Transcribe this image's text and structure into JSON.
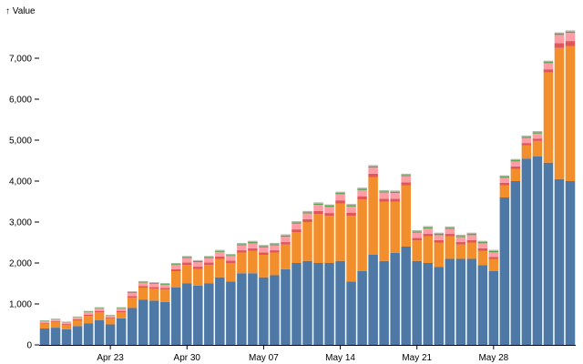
{
  "chart_data": {
    "type": "bar",
    "stacked": true,
    "ylabel": "↑ Value",
    "ylim": [
      0,
      7800
    ],
    "y_ticks": [
      0,
      1000,
      2000,
      3000,
      4000,
      5000,
      6000,
      7000
    ],
    "y_tick_labels": [
      "0",
      "1,000",
      "2,000",
      "3,000",
      "4,000",
      "5,000",
      "6,000",
      "7,000"
    ],
    "x_ticks": [
      {
        "date": "2020-04-23",
        "label": "Apr 23"
      },
      {
        "date": "2020-04-30",
        "label": "Apr 30"
      },
      {
        "date": "2020-05-07",
        "label": "May 07"
      },
      {
        "date": "2020-05-14",
        "label": "May 14"
      },
      {
        "date": "2020-05-21",
        "label": "May 21"
      },
      {
        "date": "2020-05-28",
        "label": "May 28"
      }
    ],
    "categories": [
      "2020-04-17",
      "2020-04-18",
      "2020-04-19",
      "2020-04-20",
      "2020-04-21",
      "2020-04-22",
      "2020-04-23",
      "2020-04-24",
      "2020-04-25",
      "2020-04-26",
      "2020-04-27",
      "2020-04-28",
      "2020-04-29",
      "2020-04-30",
      "2020-05-01",
      "2020-05-02",
      "2020-05-03",
      "2020-05-04",
      "2020-05-05",
      "2020-05-06",
      "2020-05-07",
      "2020-05-08",
      "2020-05-09",
      "2020-05-10",
      "2020-05-11",
      "2020-05-12",
      "2020-05-13",
      "2020-05-14",
      "2020-05-15",
      "2020-05-16",
      "2020-05-17",
      "2020-05-18",
      "2020-05-19",
      "2020-05-20",
      "2020-05-21",
      "2020-05-22",
      "2020-05-23",
      "2020-05-24",
      "2020-05-25",
      "2020-05-26",
      "2020-05-27",
      "2020-05-28",
      "2020-05-29",
      "2020-05-30",
      "2020-05-31",
      "2020-06-01",
      "2020-06-02",
      "2020-06-03",
      "2020-06-04"
    ],
    "series": [
      {
        "color": "#4e79a7",
        "values": [
          400,
          420,
          380,
          460,
          530,
          600,
          500,
          650,
          900,
          1100,
          1080,
          1050,
          1400,
          1500,
          1450,
          1500,
          1650,
          1550,
          1750,
          1750,
          1650,
          1700,
          1850,
          2000,
          2050,
          2000,
          2000,
          2050,
          1550,
          1800,
          2200,
          2050,
          2250,
          2400,
          2050,
          2000,
          1900,
          2100,
          2100,
          2100,
          1950,
          1800,
          3600,
          4000,
          4550,
          4600,
          4450,
          4050,
          4000
        ]
      },
      {
        "color": "#f28e2b",
        "values": [
          120,
          140,
          110,
          140,
          180,
          200,
          140,
          150,
          250,
          300,
          290,
          300,
          400,
          450,
          400,
          450,
          450,
          450,
          500,
          550,
          550,
          550,
          600,
          750,
          950,
          1200,
          1150,
          1400,
          1600,
          1750,
          1900,
          1450,
          1250,
          1500,
          500,
          650,
          600,
          550,
          350,
          400,
          350,
          300,
          300,
          300,
          320,
          380,
          2200,
          3200,
          3300
        ]
      },
      {
        "color": "#e15759",
        "values": [
          20,
          20,
          20,
          25,
          30,
          30,
          25,
          30,
          40,
          40,
          40,
          40,
          50,
          60,
          60,
          60,
          60,
          60,
          60,
          60,
          60,
          60,
          60,
          70,
          70,
          70,
          70,
          80,
          80,
          80,
          80,
          70,
          70,
          70,
          60,
          60,
          60,
          60,
          60,
          60,
          60,
          50,
          60,
          60,
          60,
          60,
          80,
          120,
          120
        ]
      },
      {
        "color": "#ff9da7",
        "values": [
          40,
          40,
          40,
          50,
          60,
          60,
          50,
          60,
          80,
          80,
          80,
          80,
          100,
          110,
          110,
          110,
          110,
          110,
          120,
          120,
          120,
          120,
          130,
          140,
          140,
          150,
          150,
          150,
          150,
          150,
          150,
          150,
          140,
          150,
          130,
          130,
          120,
          120,
          120,
          120,
          120,
          110,
          120,
          120,
          120,
          120,
          150,
          200,
          200
        ]
      },
      {
        "color": "#59a14f",
        "values": [
          10,
          10,
          10,
          10,
          15,
          15,
          10,
          15,
          20,
          20,
          20,
          20,
          25,
          25,
          25,
          25,
          25,
          25,
          30,
          30,
          30,
          30,
          30,
          30,
          30,
          30,
          30,
          30,
          30,
          30,
          30,
          30,
          30,
          30,
          30,
          30,
          30,
          30,
          30,
          30,
          30,
          30,
          30,
          30,
          30,
          30,
          30,
          30,
          30
        ]
      },
      {
        "color": "#bab0ac",
        "values": [
          10,
          10,
          10,
          10,
          15,
          15,
          10,
          15,
          20,
          20,
          20,
          20,
          25,
          25,
          25,
          25,
          25,
          25,
          30,
          30,
          30,
          30,
          30,
          30,
          30,
          30,
          30,
          30,
          30,
          30,
          30,
          30,
          30,
          30,
          30,
          30,
          30,
          30,
          30,
          30,
          30,
          30,
          30,
          30,
          30,
          30,
          30,
          30,
          30
        ]
      }
    ]
  }
}
